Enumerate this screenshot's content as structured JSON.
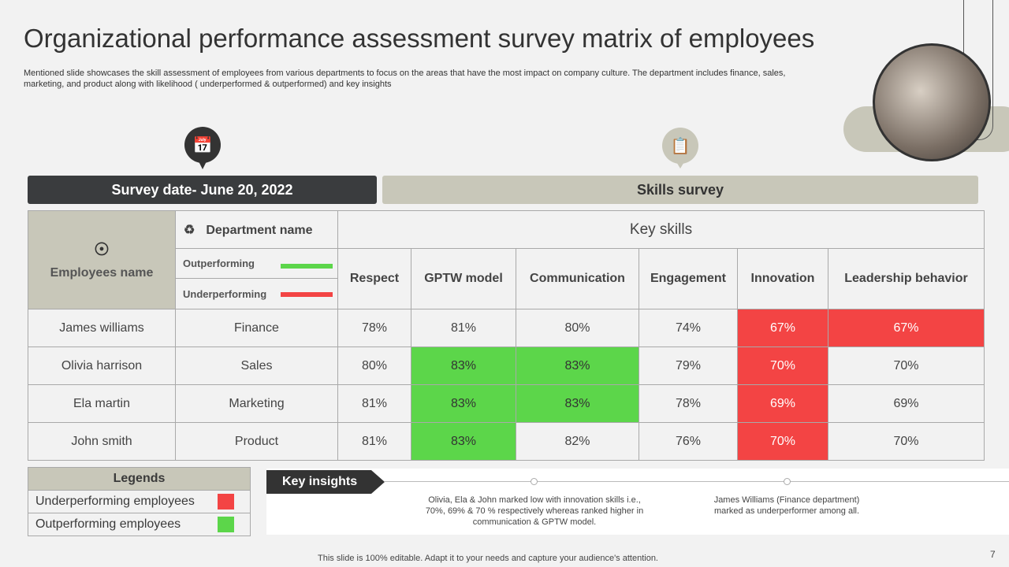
{
  "title": "Organizational performance assessment survey matrix of employees",
  "subtitle": "Mentioned slide showcases the skill assessment of employees from various departments to focus on the areas that have the most impact on company culture. The department includes finance, sales, marketing, and product along with likelihood ( underperformed & outperformed) and key insights",
  "survey_date": "Survey date- June 20, 2022",
  "skills_survey": "Skills survey",
  "colors": {
    "red": "#f34444",
    "green": "#5cd64a",
    "dark": "#333",
    "beige": "#c8c7b9"
  },
  "table": {
    "employees_header": "Employees name",
    "department_header": "Department name",
    "outperforming": "Outperforming",
    "underperforming": "Underperforming",
    "key_skills": "Key skills",
    "skills": [
      "Respect",
      "GPTW model",
      "Communication",
      "Engagement",
      "Innovation",
      "Leadership behavior"
    ],
    "rows": [
      {
        "name": "James williams",
        "dept": "Finance",
        "values": [
          "78%",
          "81%",
          "80%",
          "74%",
          "67%",
          "67%"
        ],
        "status": [
          "",
          "",
          "",
          "",
          "under",
          "under"
        ]
      },
      {
        "name": "Olivia harrison",
        "dept": "Sales",
        "values": [
          "80%",
          "83%",
          "83%",
          "79%",
          "70%",
          "70%"
        ],
        "status": [
          "",
          "out",
          "out",
          "",
          "under",
          ""
        ]
      },
      {
        "name": "Ela martin",
        "dept": "Marketing",
        "values": [
          "81%",
          "83%",
          "83%",
          "78%",
          "69%",
          "69%"
        ],
        "status": [
          "",
          "out",
          "out",
          "",
          "under",
          ""
        ]
      },
      {
        "name": "John smith",
        "dept": "Product",
        "values": [
          "81%",
          "83%",
          "82%",
          "76%",
          "70%",
          "70%"
        ],
        "status": [
          "",
          "out",
          "",
          "",
          "under",
          ""
        ]
      }
    ]
  },
  "legends": {
    "title": "Legends",
    "items": [
      "Underperforming employees",
      "Outperforming employees"
    ]
  },
  "insights": {
    "label": "Key insights",
    "items": [
      "Olivia, Ela & John marked low with innovation skills i.e., 70%, 69% & 70 % respectively whereas ranked higher in communication & GPTW model.",
      "James Williams (Finance department) marked as underperformer among all."
    ]
  },
  "footer": "This slide is 100% editable. Adapt it to your needs and capture your audience's attention.",
  "page_number": "7"
}
